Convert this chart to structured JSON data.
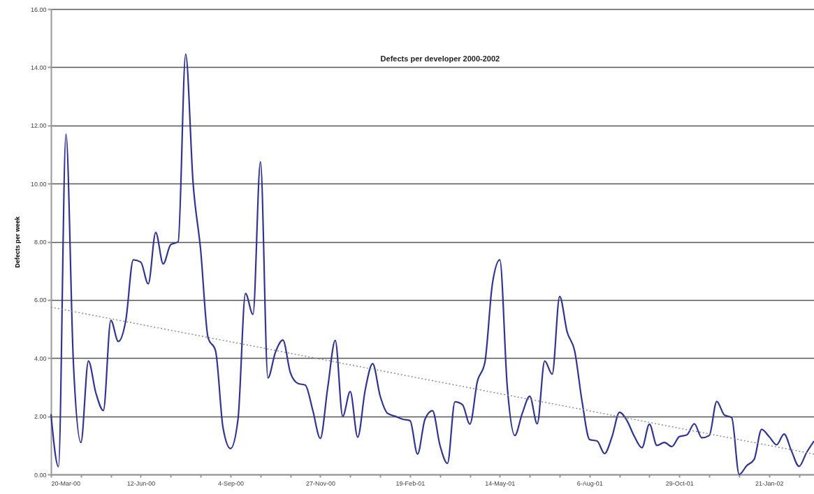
{
  "chart_data": {
    "type": "line",
    "title": "Defects per developer 2000-2002",
    "ylabel": "Defects per week",
    "xlim": [
      "2000-03-20",
      "2002-03-04"
    ],
    "xticks": [
      {
        "value": "2000-03-20",
        "label": "20-Mar-00"
      },
      {
        "value": "2000-04-17",
        "label": null
      },
      {
        "value": "2000-05-15",
        "label": null
      },
      {
        "value": "2000-06-12",
        "label": "12-Jun-00"
      },
      {
        "value": "2000-07-10",
        "label": null
      },
      {
        "value": "2000-08-07",
        "label": null
      },
      {
        "value": "2000-09-04",
        "label": "4-Sep-00"
      },
      {
        "value": "2000-10-02",
        "label": null
      },
      {
        "value": "2000-10-30",
        "label": null
      },
      {
        "value": "2000-11-27",
        "label": "27-Nov-00"
      },
      {
        "value": "2000-12-25",
        "label": null
      },
      {
        "value": "2001-01-22",
        "label": null
      },
      {
        "value": "2001-02-19",
        "label": "19-Feb-01"
      },
      {
        "value": "2001-03-19",
        "label": null
      },
      {
        "value": "2001-04-16",
        "label": null
      },
      {
        "value": "2001-05-14",
        "label": "14-May-01"
      },
      {
        "value": "2001-06-11",
        "label": null
      },
      {
        "value": "2001-07-09",
        "label": null
      },
      {
        "value": "2001-08-06",
        "label": "6-Aug-01"
      },
      {
        "value": "2001-09-03",
        "label": null
      },
      {
        "value": "2001-10-01",
        "label": null
      },
      {
        "value": "2001-10-29",
        "label": "29-Oct-01"
      },
      {
        "value": "2001-11-26",
        "label": null
      },
      {
        "value": "2001-12-24",
        "label": null
      },
      {
        "value": "2002-01-21",
        "label": "21-Jan-02"
      },
      {
        "value": "2002-02-18",
        "label": null
      }
    ],
    "ylim": [
      0,
      16
    ],
    "yticks": [
      {
        "value": 0,
        "label": "0.00"
      },
      {
        "value": 2,
        "label": "2.00"
      },
      {
        "value": 4,
        "label": "4.00"
      },
      {
        "value": 6,
        "label": "6.00"
      },
      {
        "value": 8,
        "label": "8.00"
      },
      {
        "value": 10,
        "label": "10.00"
      },
      {
        "value": 12,
        "label": "12.00"
      },
      {
        "value": 14,
        "label": "14.00"
      },
      {
        "value": 16,
        "label": "16.00"
      }
    ],
    "grid": "y",
    "marker": "none",
    "series": [
      {
        "color": "#31358f",
        "line_style": "solid",
        "x": [
          "2000-03-20",
          "2000-03-27",
          "2000-04-03",
          "2000-04-10",
          "2000-04-17",
          "2000-04-24",
          "2000-05-01",
          "2000-05-08",
          "2000-05-15",
          "2000-05-22",
          "2000-05-29",
          "2000-06-05",
          "2000-06-12",
          "2000-06-19",
          "2000-06-26",
          "2000-07-03",
          "2000-07-10",
          "2000-07-17",
          "2000-07-24",
          "2000-07-31",
          "2000-08-07",
          "2000-08-14",
          "2000-08-21",
          "2000-08-28",
          "2000-09-04",
          "2000-09-11",
          "2000-09-18",
          "2000-09-25",
          "2000-10-02",
          "2000-10-09",
          "2000-10-16",
          "2000-10-23",
          "2000-10-30",
          "2000-11-06",
          "2000-11-13",
          "2000-11-20",
          "2000-11-27",
          "2000-12-04",
          "2000-12-11",
          "2000-12-18",
          "2000-12-25",
          "2001-01-01",
          "2001-01-08",
          "2001-01-15",
          "2001-01-22",
          "2001-01-29",
          "2001-02-05",
          "2001-02-12",
          "2001-02-19",
          "2001-02-26",
          "2001-03-05",
          "2001-03-12",
          "2001-03-19",
          "2001-03-26",
          "2001-04-02",
          "2001-04-09",
          "2001-04-16",
          "2001-04-23",
          "2001-04-30",
          "2001-05-07",
          "2001-05-14",
          "2001-05-21",
          "2001-05-28",
          "2001-06-04",
          "2001-06-11",
          "2001-06-18",
          "2001-06-25",
          "2001-07-02",
          "2001-07-09",
          "2001-07-16",
          "2001-07-23",
          "2001-07-30",
          "2001-08-06",
          "2001-08-13",
          "2001-08-20",
          "2001-08-27",
          "2001-09-03",
          "2001-09-10",
          "2001-09-17",
          "2001-09-24",
          "2001-10-01",
          "2001-10-08",
          "2001-10-15",
          "2001-10-22",
          "2001-10-29",
          "2001-11-05",
          "2001-11-12",
          "2001-11-19",
          "2001-11-26",
          "2001-12-03",
          "2001-12-10",
          "2001-12-17",
          "2001-12-24",
          "2001-12-31",
          "2002-01-07",
          "2002-01-14",
          "2002-01-21",
          "2002-01-28",
          "2002-02-04",
          "2002-02-11",
          "2002-02-18",
          "2002-02-25",
          "2002-03-04"
        ],
        "values": [
          2.07,
          0.27,
          11.7,
          3.8,
          1.1,
          3.9,
          2.8,
          2.2,
          5.3,
          4.57,
          5.3,
          7.38,
          7.3,
          6.55,
          8.32,
          7.24,
          7.9,
          8.0,
          14.45,
          10.0,
          7.73,
          4.7,
          4.25,
          1.6,
          0.89,
          1.9,
          6.22,
          5.5,
          10.75,
          3.32,
          4.2,
          4.62,
          3.5,
          3.13,
          3.07,
          2.2,
          1.24,
          3.0,
          4.61,
          2.0,
          2.85,
          1.28,
          2.9,
          3.81,
          2.7,
          2.1,
          2.0,
          1.9,
          1.85,
          0.7,
          1.9,
          2.19,
          1.0,
          0.38,
          2.5,
          2.4,
          1.73,
          3.2,
          3.85,
          6.54,
          7.38,
          3.0,
          1.34,
          2.1,
          2.69,
          1.74,
          3.9,
          3.45,
          6.12,
          4.9,
          4.25,
          2.5,
          1.2,
          1.15,
          0.72,
          1.3,
          2.14,
          1.85,
          1.3,
          0.92,
          1.73,
          1.0,
          1.1,
          0.96,
          1.3,
          1.36,
          1.74,
          1.26,
          1.34,
          2.51,
          2.05,
          1.95,
          0.0,
          0.3,
          0.52,
          1.55,
          1.3,
          1.02,
          1.39,
          0.8,
          0.28,
          0.75,
          1.15
        ]
      },
      {
        "color": "#8c8c8c",
        "line_style": "dotted",
        "x": [
          "2000-03-20",
          "2002-03-04"
        ],
        "values": [
          5.75,
          0.7
        ]
      }
    ]
  }
}
